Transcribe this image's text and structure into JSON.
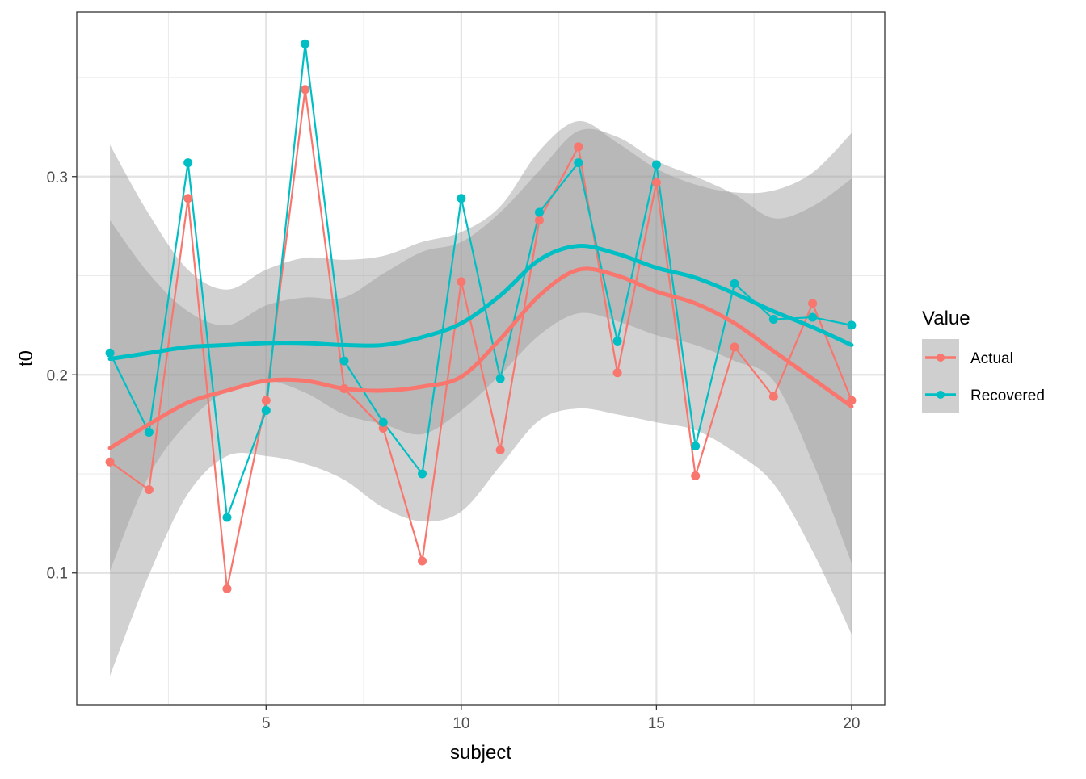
{
  "chart_data": {
    "type": "line",
    "xlabel": "subject",
    "ylabel": "t0",
    "xlim": [
      0.15,
      20.85
    ],
    "ylim": [
      0.0335,
      0.383
    ],
    "x_ticks": [
      5,
      10,
      15,
      20
    ],
    "x_tick_labels": [
      "5",
      "10",
      "15",
      "20"
    ],
    "x_minor": [
      2.5,
      7.5,
      12.5,
      17.5
    ],
    "y_ticks": [
      0.1,
      0.2,
      0.3
    ],
    "y_tick_labels": [
      "0.1",
      "0.2",
      "0.3"
    ],
    "y_minor": [
      0.05,
      0.15,
      0.25,
      0.35
    ],
    "grid": true,
    "x": [
      1,
      2,
      3,
      4,
      5,
      6,
      7,
      8,
      9,
      10,
      11,
      12,
      13,
      14,
      15,
      16,
      17,
      18,
      19,
      20
    ],
    "series": [
      {
        "name": "Actual",
        "color": "#F8766D",
        "values": [
          0.156,
          0.142,
          0.289,
          0.092,
          0.187,
          0.344,
          0.193,
          0.173,
          0.106,
          0.247,
          0.162,
          0.278,
          0.315,
          0.201,
          0.297,
          0.149,
          0.214,
          0.189,
          0.236,
          0.187
        ],
        "smooth": {
          "x": [
            1,
            2,
            3,
            4,
            5,
            6,
            7,
            8,
            9,
            10,
            11,
            12,
            13,
            14,
            15,
            16,
            17,
            18,
            19,
            20
          ],
          "fit": [
            0.163,
            0.175,
            0.186,
            0.192,
            0.197,
            0.197,
            0.193,
            0.192,
            0.194,
            0.199,
            0.218,
            0.24,
            0.253,
            0.25,
            0.242,
            0.236,
            0.226,
            0.212,
            0.198,
            0.184
          ],
          "lower": [
            0.048,
            0.099,
            0.14,
            0.159,
            0.159,
            0.155,
            0.147,
            0.133,
            0.126,
            0.131,
            0.154,
            0.177,
            0.183,
            0.18,
            0.176,
            0.172,
            0.161,
            0.145,
            0.111,
            0.069
          ],
          "upper": [
            0.278,
            0.251,
            0.232,
            0.225,
            0.235,
            0.239,
            0.239,
            0.251,
            0.262,
            0.267,
            0.282,
            0.303,
            0.323,
            0.32,
            0.308,
            0.3,
            0.291,
            0.279,
            0.285,
            0.299
          ]
        }
      },
      {
        "name": "Recovered",
        "color": "#00BFC4",
        "values": [
          0.211,
          0.171,
          0.307,
          0.128,
          0.182,
          0.367,
          0.207,
          0.176,
          0.15,
          0.289,
          0.198,
          0.282,
          0.307,
          0.217,
          0.306,
          0.164,
          0.246,
          0.228,
          0.229,
          0.225
        ],
        "smooth": {
          "x": [
            1,
            2,
            3,
            4,
            5,
            6,
            7,
            8,
            9,
            10,
            11,
            12,
            13,
            14,
            15,
            16,
            17,
            18,
            19,
            20
          ],
          "fit": [
            0.208,
            0.211,
            0.214,
            0.215,
            0.216,
            0.216,
            0.215,
            0.215,
            0.219,
            0.226,
            0.24,
            0.258,
            0.265,
            0.261,
            0.254,
            0.249,
            0.241,
            0.232,
            0.224,
            0.215
          ],
          "lower": [
            0.101,
            0.149,
            0.176,
            0.192,
            0.197,
            0.191,
            0.18,
            0.175,
            0.17,
            0.182,
            0.2,
            0.22,
            0.231,
            0.227,
            0.22,
            0.215,
            0.207,
            0.197,
            0.156,
            0.105
          ],
          "upper": [
            0.316,
            0.281,
            0.253,
            0.243,
            0.253,
            0.259,
            0.258,
            0.26,
            0.267,
            0.272,
            0.285,
            0.313,
            0.328,
            0.317,
            0.304,
            0.296,
            0.292,
            0.293,
            0.302,
            0.322
          ]
        }
      }
    ],
    "legend": {
      "title": "Value",
      "position": "right",
      "entries": [
        "Actual",
        "Recovered"
      ]
    }
  }
}
